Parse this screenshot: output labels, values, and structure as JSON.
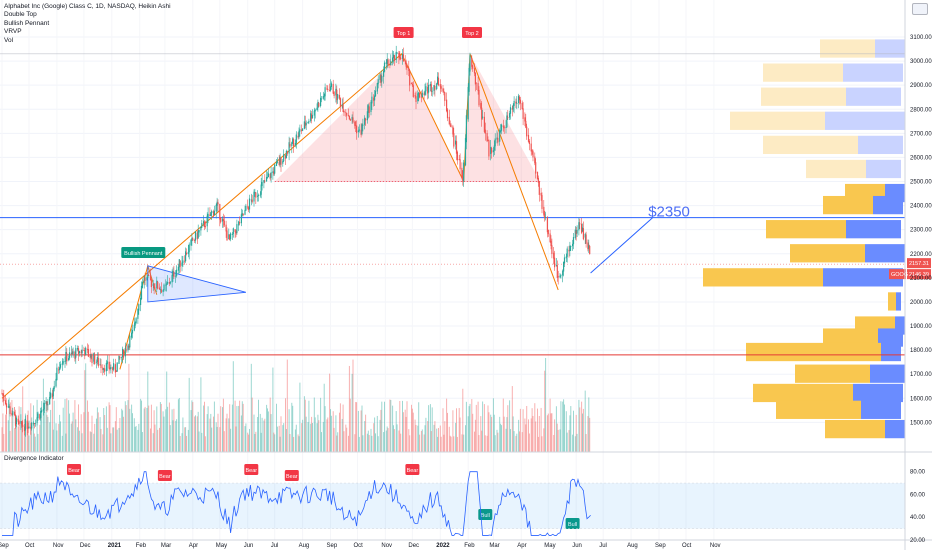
{
  "legend": {
    "symbol": "Alphabet Inc (Google) Class C, 1D, NASDAQ, Heikin Ashi",
    "ind1": "Double Top",
    "ind2": "Bullish Pennant",
    "ind3": "VRVP",
    "ind4": "Vol"
  },
  "sub_legend": "Divergence Indicator",
  "colors": {
    "up": "#26a69a",
    "down": "#ef5350",
    "trend": "#f57c00",
    "blue_line": "#2962ff",
    "red_line": "#e53935",
    "rsi": "#2962ff",
    "vp_up": "#f9c74f",
    "vp_down": "#6a8cff",
    "vp_up_out": "#fdebc4",
    "vp_down_out": "#c9d3ff"
  },
  "chart_data": {
    "type": "candlestick",
    "title": "Alphabet Inc (Google) Class C, 1D, NASDAQ, Heikin Ashi",
    "ylim": [
      1420,
      3200
    ],
    "y_ticks": [
      1500,
      1600,
      1700,
      1800,
      1900,
      2000,
      2100,
      2200,
      2300,
      2400,
      2500,
      2600,
      2700,
      2800,
      2900,
      3000,
      3100
    ],
    "x_ticks": [
      "Sep",
      "Oct",
      "Nov",
      "Dec",
      "2021",
      "Feb",
      "Mar",
      "Apr",
      "May",
      "Jun",
      "Jul",
      "Aug",
      "Sep",
      "Oct",
      "Nov",
      "Dec",
      "2022",
      "Feb",
      "Mar",
      "Apr",
      "May",
      "Jun",
      "Jul",
      "Aug",
      "Sep",
      "Oct",
      "Nov"
    ],
    "price_path": [
      {
        "date": "2020-09-01",
        "price": 1620
      },
      {
        "date": "2020-09-20",
        "price": 1480
      },
      {
        "date": "2020-10-05",
        "price": 1500
      },
      {
        "date": "2020-10-25",
        "price": 1590
      },
      {
        "date": "2020-11-05",
        "price": 1760
      },
      {
        "date": "2020-12-01",
        "price": 1800
      },
      {
        "date": "2020-12-20",
        "price": 1740
      },
      {
        "date": "2021-01-05",
        "price": 1720
      },
      {
        "date": "2021-01-25",
        "price": 1870
      },
      {
        "date": "2021-02-05",
        "price": 2100
      },
      {
        "date": "2021-03-01",
        "price": 2050
      },
      {
        "date": "2021-04-01",
        "price": 2250
      },
      {
        "date": "2021-04-28",
        "price": 2400
      },
      {
        "date": "2021-05-12",
        "price": 2250
      },
      {
        "date": "2021-06-05",
        "price": 2420
      },
      {
        "date": "2021-07-01",
        "price": 2550
      },
      {
        "date": "2021-08-01",
        "price": 2720
      },
      {
        "date": "2021-09-01",
        "price": 2900
      },
      {
        "date": "2021-10-04",
        "price": 2700
      },
      {
        "date": "2021-11-01",
        "price": 2980
      },
      {
        "date": "2021-11-19",
        "price": 3030
      },
      {
        "date": "2021-12-05",
        "price": 2850
      },
      {
        "date": "2022-01-01",
        "price": 2920
      },
      {
        "date": "2022-01-27",
        "price": 2500
      },
      {
        "date": "2022-02-03",
        "price": 3030
      },
      {
        "date": "2022-02-25",
        "price": 2620
      },
      {
        "date": "2022-03-20",
        "price": 2780
      },
      {
        "date": "2022-03-30",
        "price": 2850
      },
      {
        "date": "2022-04-25",
        "price": 2400
      },
      {
        "date": "2022-05-12",
        "price": 2100
      },
      {
        "date": "2022-06-05",
        "price": 2330
      },
      {
        "date": "2022-06-17",
        "price": 2200
      }
    ],
    "current_price": "2157.31",
    "current_label": "2146.39",
    "ticker_tag": "GOOG",
    "levels": [
      {
        "price": 2350,
        "label": "$2350"
      },
      {
        "price": 1780,
        "label": ""
      }
    ],
    "double_top": {
      "top1_label": "Top 1",
      "top2_label": "Top 2",
      "neckline": 2500
    },
    "pennant_label": "Bullish Pennant",
    "target_label": "$2350",
    "volume_profile_price_rows": [
      3050,
      2950,
      2850,
      2750,
      2650,
      2550,
      2450,
      2350,
      2250,
      2150,
      2050,
      1950,
      1850,
      1750,
      1650,
      1550,
      1450
    ],
    "rsi": {
      "name": "Divergence Indicator",
      "ylim": [
        20,
        85
      ],
      "ticks": [
        20,
        40,
        60,
        80
      ],
      "tick_labels": [
        "20.00",
        "40.00",
        "60.00",
        "80.00"
      ],
      "upper": 70,
      "lower": 30,
      "bear_tags": [
        "Bear",
        "Bear",
        "Bear",
        "Bear",
        "Bear"
      ],
      "bull_tags": [
        "Bull",
        "Bull"
      ]
    }
  }
}
